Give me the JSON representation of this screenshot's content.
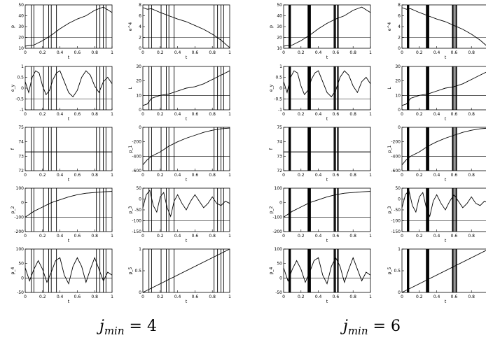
{
  "captions": [
    {
      "prefix": "j",
      "sub": "min",
      "eq": "= 4"
    },
    {
      "prefix": "j",
      "sub": "min",
      "eq": "= 6"
    }
  ],
  "chart_data": {
    "type": "line",
    "xlabel": "t",
    "xlim": [
      0,
      1
    ],
    "xticks": [
      "0",
      "0.2",
      "0.4",
      "0.6",
      "0.8",
      "1"
    ],
    "panels": [
      {
        "ylabel": "p",
        "ylim": [
          10,
          50
        ],
        "yticks": [
          10,
          20,
          30,
          40,
          50
        ],
        "x": [
          0,
          0.1,
          0.2,
          0.3,
          0.4,
          0.5,
          0.6,
          0.7,
          0.8,
          0.9,
          1.0
        ],
        "y": [
          12,
          13,
          17,
          22,
          28,
          33,
          37,
          40,
          45,
          48,
          43
        ]
      },
      {
        "ylabel": "e^4",
        "ylim": [
          0,
          8
        ],
        "yticks": [
          0,
          2,
          4,
          6,
          8
        ],
        "x": [
          0,
          0.05,
          0.1,
          0.2,
          0.3,
          0.4,
          0.5,
          0.6,
          0.7,
          0.8,
          0.9,
          1.0
        ],
        "y": [
          7.5,
          7.2,
          7.3,
          6.6,
          6.0,
          5.4,
          4.9,
          4.2,
          3.5,
          2.6,
          1.5,
          0.1
        ]
      },
      {
        "ylabel": "e_y",
        "ylim": [
          -1,
          1
        ],
        "yticks": [
          -1,
          -0.5,
          0,
          0.5,
          1
        ],
        "x": [
          0,
          0.04,
          0.08,
          0.12,
          0.16,
          0.2,
          0.24,
          0.28,
          0.32,
          0.36,
          0.4,
          0.45,
          0.5,
          0.55,
          0.6,
          0.65,
          0.7,
          0.75,
          0.8,
          0.85,
          0.9,
          0.95,
          1.0
        ],
        "y": [
          0.3,
          -0.2,
          0.5,
          0.8,
          0.7,
          0.1,
          -0.3,
          -0.1,
          0.4,
          0.7,
          0.8,
          0.3,
          -0.2,
          -0.4,
          -0.1,
          0.5,
          0.8,
          0.6,
          0.1,
          -0.2,
          0.3,
          0.5,
          0.2
        ]
      },
      {
        "ylabel": "L",
        "ylim": [
          0,
          30
        ],
        "yticks": [
          0,
          10,
          20,
          30
        ],
        "x": [
          0,
          0.05,
          0.1,
          0.15,
          0.2,
          0.3,
          0.4,
          0.5,
          0.6,
          0.7,
          0.8,
          0.9,
          1.0
        ],
        "y": [
          3,
          4,
          8,
          9,
          10,
          11,
          13,
          15,
          16,
          18,
          21,
          24,
          27
        ]
      },
      {
        "ylabel": "f",
        "ylim": [
          72,
          75
        ],
        "yticks": [
          72,
          73,
          74,
          75
        ],
        "x": [
          0,
          1
        ],
        "y": [
          73.3,
          73.3
        ]
      },
      {
        "ylabel": "p_1",
        "ylim": [
          -600,
          0
        ],
        "yticks": [
          -600,
          -400,
          -200,
          0
        ],
        "x": [
          0,
          0.05,
          0.1,
          0.2,
          0.3,
          0.4,
          0.5,
          0.6,
          0.7,
          0.8,
          0.9,
          1.0
        ],
        "y": [
          -520,
          -450,
          -400,
          -340,
          -260,
          -200,
          -150,
          -110,
          -70,
          -40,
          -20,
          -10
        ]
      },
      {
        "ylabel": "p_2",
        "ylim": [
          -200,
          100
        ],
        "yticks": [
          -200,
          -100,
          0,
          100
        ],
        "x": [
          0,
          0.05,
          0.1,
          0.2,
          0.3,
          0.4,
          0.5,
          0.6,
          0.7,
          0.8,
          0.9,
          1.0
        ],
        "y": [
          -100,
          -80,
          -60,
          -30,
          0,
          20,
          40,
          55,
          65,
          70,
          75,
          78
        ]
      },
      {
        "ylabel": "p_3",
        "ylim": [
          -150,
          50
        ],
        "yticks": [
          -150,
          -100,
          -50,
          0,
          50
        ],
        "x": [
          0,
          0.04,
          0.08,
          0.12,
          0.16,
          0.2,
          0.24,
          0.28,
          0.32,
          0.36,
          0.4,
          0.45,
          0.5,
          0.55,
          0.6,
          0.65,
          0.7,
          0.75,
          0.8,
          0.85,
          0.9,
          0.95,
          1.0
        ],
        "y": [
          -40,
          20,
          40,
          -30,
          -60,
          10,
          30,
          -40,
          -80,
          -10,
          20,
          -20,
          -50,
          -10,
          20,
          -10,
          -40,
          -20,
          10,
          -20,
          -30,
          -10,
          -20
        ]
      },
      {
        "ylabel": "p_4",
        "ylim": [
          -50,
          100
        ],
        "yticks": [
          -50,
          0,
          50,
          100
        ],
        "x": [
          0,
          0.05,
          0.1,
          0.15,
          0.2,
          0.25,
          0.3,
          0.35,
          0.4,
          0.45,
          0.5,
          0.55,
          0.6,
          0.65,
          0.7,
          0.75,
          0.8,
          0.85,
          0.9,
          0.95,
          1.0
        ],
        "y": [
          35,
          -10,
          30,
          60,
          30,
          -15,
          20,
          60,
          70,
          10,
          -20,
          40,
          70,
          40,
          -15,
          30,
          70,
          30,
          -10,
          20,
          10
        ]
      },
      {
        "ylabel": "p_5",
        "ylim": [
          0,
          1
        ],
        "yticks": [
          0,
          0.5,
          1
        ],
        "x": [
          0,
          1
        ],
        "y": [
          0,
          1
        ]
      }
    ],
    "column_layouts": [
      {
        "switch_times": [
          0.07,
          0.1,
          0.21,
          0.27,
          0.3,
          0.36,
          0.82,
          0.86,
          0.9,
          0.93
        ]
      },
      {
        "switch_times": [
          0.06,
          0.065,
          0.07,
          0.075,
          0.08,
          0.28,
          0.285,
          0.29,
          0.295,
          0.3,
          0.305,
          0.31,
          0.58,
          0.585,
          0.59,
          0.6,
          0.62,
          0.625,
          0.63
        ]
      }
    ]
  }
}
